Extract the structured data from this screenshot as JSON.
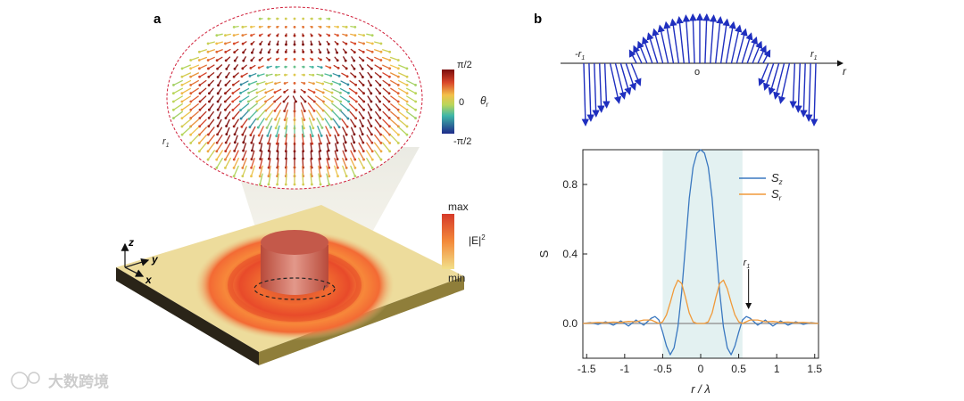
{
  "panel_a": {
    "label": "a",
    "colorbar_theta": {
      "top": "π/2",
      "mid": "0",
      "bottom": "-π/2",
      "symbol": "θ",
      "subscript": "r"
    },
    "colorbar_E": {
      "top": "max",
      "bottom": "min",
      "label": "|E|",
      "sup": "2"
    },
    "r1_label": "r",
    "r1_sub": "1",
    "axes": {
      "z": "z",
      "y": "y",
      "x": "x"
    }
  },
  "panel_b": {
    "label": "b",
    "vector_axis": {
      "neg_r1": "-r",
      "pos_r1": "r",
      "sub": "1",
      "origin": "o",
      "r": "r"
    }
  },
  "watermark": "大数跨境",
  "chart_data": {
    "type": "line",
    "xlabel": "r / λ",
    "ylabel": "S",
    "xlim": [
      -1.55,
      1.55
    ],
    "ylim": [
      -0.2,
      1.0
    ],
    "xticks": [
      "-1.5",
      "-1",
      "-0.5",
      "0",
      "0.5",
      "1",
      "1.5"
    ],
    "xtick_values": [
      -1.5,
      -1,
      -0.5,
      0,
      0.5,
      1,
      1.5
    ],
    "yticks": [
      "0.0",
      "0.4",
      "0.8"
    ],
    "ytick_values": [
      0.0,
      0.4,
      0.8
    ],
    "shaded_region": [
      -0.5,
      0.55
    ],
    "r1_marker": {
      "label": "r",
      "sub": "1",
      "x": 0.63
    },
    "legend": {
      "position": "top-right"
    },
    "series": [
      {
        "name": "S",
        "sub": "z",
        "color": "#3a78c0",
        "x": [
          -1.55,
          -1.45,
          -1.35,
          -1.25,
          -1.15,
          -1.05,
          -0.95,
          -0.85,
          -0.75,
          -0.65,
          -0.6,
          -0.55,
          -0.5,
          -0.45,
          -0.4,
          -0.35,
          -0.3,
          -0.25,
          -0.2,
          -0.15,
          -0.1,
          -0.05,
          0,
          0.05,
          0.1,
          0.15,
          0.2,
          0.25,
          0.3,
          0.35,
          0.4,
          0.45,
          0.5,
          0.55,
          0.6,
          0.65,
          0.75,
          0.85,
          0.95,
          1.05,
          1.15,
          1.25,
          1.35,
          1.45,
          1.55
        ],
        "y": [
          0.0,
          0.005,
          -0.005,
          0.01,
          -0.01,
          0.015,
          -0.015,
          0.02,
          -0.01,
          0.03,
          0.04,
          0.02,
          -0.05,
          -0.13,
          -0.18,
          -0.14,
          -0.02,
          0.18,
          0.45,
          0.72,
          0.9,
          0.98,
          1.0,
          0.98,
          0.9,
          0.72,
          0.45,
          0.18,
          -0.02,
          -0.14,
          -0.18,
          -0.13,
          -0.05,
          0.02,
          0.04,
          0.03,
          -0.01,
          0.02,
          -0.015,
          0.015,
          -0.01,
          0.01,
          -0.005,
          0.005,
          0.0
        ]
      },
      {
        "name": "S",
        "sub": "r",
        "color": "#f09a3a",
        "x": [
          -1.55,
          -1.45,
          -1.35,
          -1.25,
          -1.15,
          -1.05,
          -0.95,
          -0.85,
          -0.75,
          -0.65,
          -0.55,
          -0.5,
          -0.45,
          -0.4,
          -0.35,
          -0.3,
          -0.25,
          -0.2,
          -0.15,
          -0.1,
          -0.05,
          0,
          0.05,
          0.1,
          0.15,
          0.2,
          0.25,
          0.3,
          0.35,
          0.4,
          0.45,
          0.5,
          0.55,
          0.65,
          0.75,
          0.85,
          0.95,
          1.05,
          1.15,
          1.25,
          1.35,
          1.45,
          1.55
        ],
        "y": [
          0.0,
          0.003,
          0.006,
          0.004,
          0.008,
          0.006,
          0.012,
          0.01,
          0.02,
          0.02,
          0.0,
          0.01,
          0.05,
          0.12,
          0.2,
          0.25,
          0.23,
          0.15,
          0.06,
          0.01,
          0.0,
          0.0,
          0.0,
          0.01,
          0.06,
          0.15,
          0.23,
          0.25,
          0.2,
          0.12,
          0.05,
          0.01,
          0.0,
          0.02,
          0.02,
          0.01,
          0.012,
          0.006,
          0.008,
          0.004,
          0.006,
          0.003,
          0.0
        ]
      }
    ],
    "baseline": {
      "y": 0.0,
      "color": "#8a8a8a"
    }
  }
}
